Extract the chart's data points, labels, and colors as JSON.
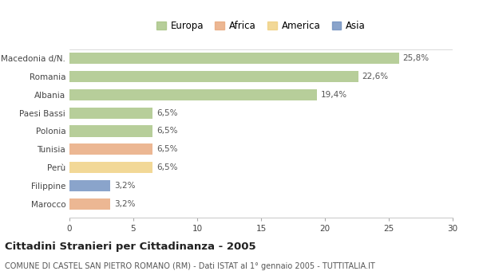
{
  "categories": [
    "Macedonia d/N.",
    "Romania",
    "Albania",
    "Paesi Bassi",
    "Polonia",
    "Tunisia",
    "Perù",
    "Filippine",
    "Marocco"
  ],
  "values": [
    25.8,
    22.6,
    19.4,
    6.5,
    6.5,
    6.5,
    6.5,
    3.2,
    3.2
  ],
  "labels": [
    "25,8%",
    "22,6%",
    "19,4%",
    "6,5%",
    "6,5%",
    "6,5%",
    "6,5%",
    "3,2%",
    "3,2%"
  ],
  "colors": [
    "#a8c484",
    "#a8c484",
    "#a8c484",
    "#a8c484",
    "#a8c484",
    "#e8a87c",
    "#f0d080",
    "#7090c0",
    "#e8a87c"
  ],
  "legend_labels": [
    "Europa",
    "Africa",
    "America",
    "Asia"
  ],
  "legend_colors": [
    "#a8c484",
    "#e8a87c",
    "#f0d080",
    "#7090c0"
  ],
  "title": "Cittadini Stranieri per Cittadinanza - 2005",
  "subtitle": "COMUNE DI CASTEL SAN PIETRO ROMANO (RM) - Dati ISTAT al 1° gennaio 2005 - TUTTITALIA.IT",
  "xlim": [
    0,
    30
  ],
  "xticks": [
    0,
    5,
    10,
    15,
    20,
    25,
    30
  ],
  "bg_color": "#ffffff",
  "bar_height": 0.62,
  "label_fontsize": 7.5,
  "title_fontsize": 9.5,
  "subtitle_fontsize": 7.0,
  "legend_fontsize": 8.5
}
